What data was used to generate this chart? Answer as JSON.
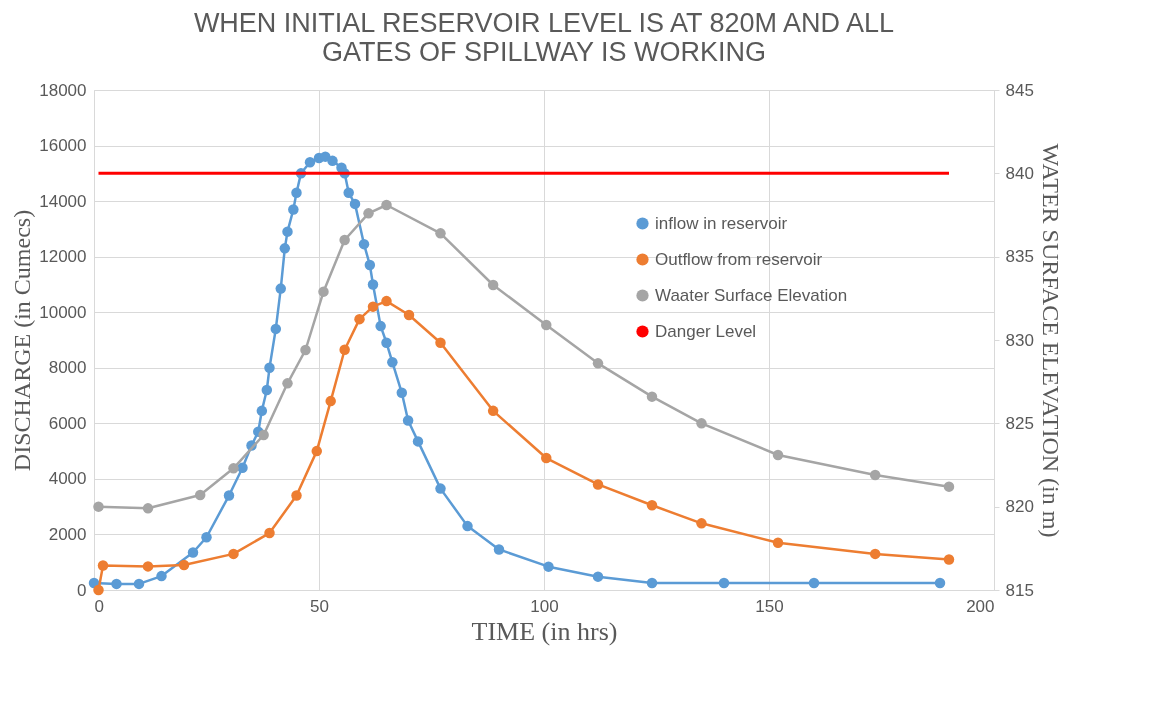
{
  "chart_data": {
    "type": "line",
    "title": "WHEN INITIAL RESERVOIR LEVEL IS AT 820M AND ALL GATES OF SPILLWAY IS WORKING",
    "xlabel": "TIME (in hrs)",
    "ylabel": "DISCHARGE (in Cumecs)",
    "y2label": "WATER SURFACE ELEVATION (in m)",
    "xlim": [
      0,
      200
    ],
    "xticks": [
      0,
      50,
      100,
      150,
      200
    ],
    "ylim": [
      0,
      18000
    ],
    "yticks": [
      0,
      2000,
      4000,
      6000,
      8000,
      10000,
      12000,
      14000,
      16000,
      18000
    ],
    "y2lim": [
      815,
      845
    ],
    "y2ticks": [
      815,
      820,
      825,
      830,
      835,
      840,
      845
    ],
    "grid": true,
    "legend": "right",
    "series": [
      {
        "name": "inflow in reservoir",
        "color": "#5b9bd5",
        "marker": "circle",
        "x": [
          0,
          5,
          10,
          15,
          22,
          25,
          30,
          33,
          35,
          36.5,
          37.3,
          38.4,
          39,
          40.4,
          41.5,
          42.4,
          43,
          44.3,
          45,
          46,
          48,
          50,
          51.4,
          53,
          55,
          55.7,
          56.6,
          58,
          60,
          61.3,
          62,
          63.7,
          65,
          66.3,
          68.4,
          69.8,
          72,
          77,
          83,
          90,
          101,
          112,
          124,
          140,
          160,
          188
        ],
        "values": [
          250,
          220,
          220,
          500,
          1350,
          1900,
          3400,
          4400,
          5200,
          5700,
          6450,
          7200,
          8000,
          9400,
          10850,
          12300,
          12900,
          13700,
          14300,
          15000,
          15400,
          15550,
          15600,
          15450,
          15200,
          15000,
          14300,
          13900,
          12450,
          11700,
          11000,
          9500,
          8900,
          8200,
          7100,
          6100,
          5350,
          3650,
          2300,
          1460,
          840,
          480,
          250,
          250,
          250,
          250
        ]
      },
      {
        "name": "Outflow from reservoir",
        "color": "#ed7d31",
        "marker": "circle",
        "x": [
          1,
          2,
          12,
          20,
          31,
          39,
          45,
          49.5,
          52.6,
          55.7,
          59,
          62,
          65,
          70,
          77,
          88.7,
          100.5,
          112,
          124,
          135,
          152,
          173.6,
          190
        ],
        "values": [
          0,
          880,
          850,
          900,
          1300,
          2050,
          3400,
          5000,
          6800,
          8650,
          9750,
          10200,
          10400,
          9900,
          8900,
          6450,
          4750,
          3800,
          3050,
          2400,
          1700,
          1300,
          1100
        ]
      },
      {
        "name": "Waater Surface Elevation",
        "color": "#a5a5a5",
        "marker": "circle",
        "axis": "y2",
        "x": [
          1,
          12,
          23.6,
          31,
          37.7,
          43,
          47,
          51,
          55.7,
          61,
          65,
          77,
          88.7,
          100.5,
          112,
          124,
          135,
          152,
          173.6,
          190
        ],
        "values": [
          820,
          819.9,
          820.7,
          822.3,
          824.3,
          827.4,
          829.4,
          832.9,
          836,
          837.6,
          838.1,
          836.4,
          833.3,
          830.9,
          828.6,
          826.6,
          825,
          823.1,
          821.9,
          821.2
        ]
      },
      {
        "name": "Danger Level",
        "color": "#ff0000",
        "marker": "none",
        "x": [
          1,
          190
        ],
        "values": [
          15000,
          15000
        ]
      }
    ]
  }
}
